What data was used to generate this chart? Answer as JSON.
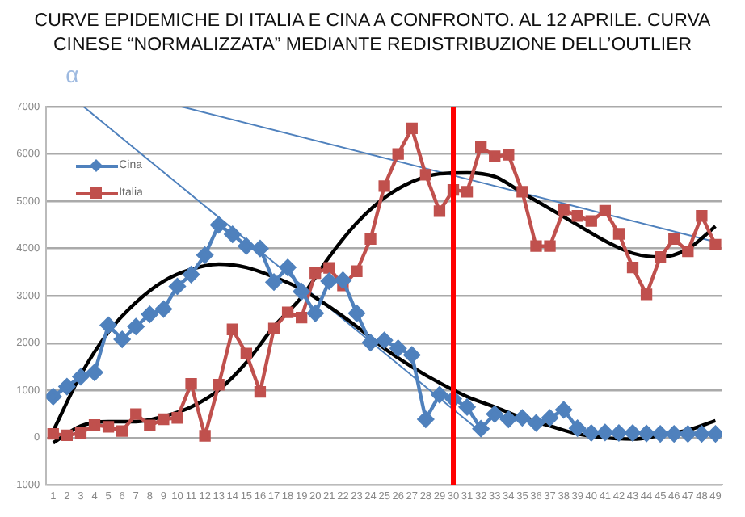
{
  "chart_data": {
    "type": "line",
    "title": "CURVE EPIDEMICHE DI ITALIA E CINA A CONFRONTO. AL 12 APRILE. CURVA CINESE “NORMALIZZATA” MEDIANTE REDISTRIBUZIONE DELL’OUTLIER",
    "x": [
      1,
      2,
      3,
      4,
      5,
      6,
      7,
      8,
      9,
      10,
      11,
      12,
      13,
      14,
      15,
      16,
      17,
      18,
      19,
      20,
      21,
      22,
      23,
      24,
      25,
      26,
      27,
      28,
      29,
      30,
      31,
      32,
      33,
      34,
      35,
      36,
      37,
      38,
      39,
      40,
      41,
      42,
      43,
      44,
      45,
      46,
      47,
      48,
      49
    ],
    "xlim": [
      0.5,
      49.5
    ],
    "xticks": [
      1,
      2,
      3,
      4,
      5,
      6,
      7,
      8,
      9,
      10,
      11,
      12,
      13,
      14,
      15,
      16,
      17,
      18,
      19,
      20,
      21,
      22,
      23,
      24,
      25,
      26,
      27,
      28,
      29,
      30,
      31,
      32,
      33,
      34,
      35,
      36,
      37,
      38,
      39,
      40,
      41,
      42,
      43,
      44,
      45,
      46,
      47,
      48,
      49
    ],
    "ylim": [
      -1000,
      7000
    ],
    "yticks": [
      -1000,
      0,
      1000,
      2000,
      3000,
      4000,
      5000,
      6000,
      7000
    ],
    "grid": "y",
    "legend": "top left",
    "series": [
      {
        "name": "Cina",
        "color": "#4f81bd",
        "marker": "diamond",
        "values": [
          870,
          1080,
          1290,
          1380,
          2380,
          2080,
          2350,
          2610,
          2720,
          3200,
          3450,
          3860,
          4500,
          4300,
          4050,
          4000,
          3290,
          3600,
          3090,
          2630,
          3310,
          3330,
          2630,
          2010,
          2060,
          1890,
          1750,
          390,
          910,
          820,
          650,
          190,
          500,
          390,
          420,
          310,
          420,
          590,
          200,
          100,
          110,
          100,
          100,
          90,
          80,
          80,
          80,
          80,
          80
        ]
      },
      {
        "name": "Italia",
        "color": "#c0504d",
        "marker": "square",
        "values": [
          80,
          50,
          100,
          270,
          230,
          140,
          500,
          260,
          390,
          420,
          1140,
          40,
          1120,
          2290,
          1780,
          970,
          2310,
          2650,
          2540,
          3480,
          3590,
          3220,
          3520,
          4200,
          5320,
          6000,
          6540,
          5560,
          4790,
          5240,
          5200,
          6150,
          5950,
          5980,
          5200,
          4050,
          4050,
          4820,
          4690,
          4580,
          4800,
          4310,
          3600,
          3030,
          3820,
          4200,
          3940,
          4690,
          4080
        ]
      },
      {
        "type": "line",
        "color": "#000000",
        "marker": "none",
        "x": [
          1,
          3,
          5,
          7,
          9,
          11,
          13,
          15,
          17,
          19,
          21,
          23,
          25,
          27,
          29,
          31,
          33,
          35,
          37,
          39,
          41,
          43,
          45,
          47,
          49
        ],
        "values": [
          140,
          1330,
          2230,
          2860,
          3310,
          3560,
          3670,
          3600,
          3400,
          3140,
          2770,
          2350,
          1890,
          1500,
          1160,
          870,
          650,
          420,
          250,
          80,
          0,
          -30,
          50,
          160,
          360
        ]
      },
      {
        "type": "line",
        "color": "#000000",
        "marker": "none",
        "x": [
          1,
          3,
          5,
          7,
          9,
          11,
          13,
          15,
          17,
          19,
          21,
          23,
          25,
          27,
          29,
          31,
          33,
          35,
          37,
          39,
          41,
          43,
          45,
          47,
          49
        ],
        "values": [
          -110,
          250,
          340,
          340,
          450,
          650,
          1010,
          1590,
          2350,
          2970,
          3820,
          4540,
          5070,
          5410,
          5580,
          5600,
          5520,
          5180,
          4840,
          4500,
          4160,
          3900,
          3820,
          3990,
          4470
        ]
      },
      {
        "type": "line",
        "color": "#4f81bd",
        "marker": "none",
        "x": [
          10.3,
          49
        ],
        "values": [
          7000,
          4140
        ]
      },
      {
        "type": "line",
        "color": "#4f81bd",
        "marker": "none",
        "x": [
          3.2,
          32
        ],
        "values": [
          7000,
          120
        ]
      }
    ],
    "ref_lines": [
      {
        "axis": "x",
        "value": 30,
        "color": "#ff0000"
      }
    ],
    "annotations": [
      "α"
    ]
  }
}
